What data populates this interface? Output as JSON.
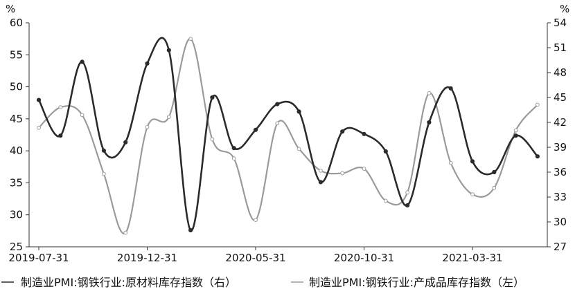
{
  "chart_data": {
    "type": "line",
    "x": [
      "2019-07-31",
      "2019-08-31",
      "2019-09-30",
      "2019-10-31",
      "2019-11-30",
      "2019-12-31",
      "2020-01-31",
      "2020-02-29",
      "2020-03-31",
      "2020-04-30",
      "2020-05-31",
      "2020-06-30",
      "2020-07-31",
      "2020-08-31",
      "2020-09-30",
      "2020-10-31",
      "2020-11-30",
      "2020-12-31",
      "2021-01-31",
      "2021-02-28",
      "2021-03-31",
      "2021-04-30",
      "2021-05-31",
      "2021-06-30"
    ],
    "xticks": [
      "2019-07-31",
      "2019-12-31",
      "2020-05-31",
      "2020-10-31",
      "2021-03-31"
    ],
    "series": [
      {
        "name": "制造业PMI:钢铁行业:原材料库存指数（右）",
        "axis": "right",
        "color": "#2b2b2b",
        "marker": "filled",
        "values": [
          44.7,
          40.4,
          49.3,
          38.6,
          39.6,
          49.1,
          50.7,
          29.0,
          45.0,
          38.9,
          41.1,
          44.2,
          43.3,
          34.8,
          40.9,
          40.6,
          38.5,
          32.0,
          42.0,
          46.1,
          37.3,
          36.0,
          40.4,
          37.9
        ]
      },
      {
        "name": "制造业PMI:钢铁行业:产成品库存指数（左）",
        "axis": "left",
        "color": "#9a9a9a",
        "marker": "hollow",
        "values": [
          43.6,
          46.8,
          45.6,
          36.4,
          27.2,
          43.7,
          45.3,
          57.5,
          41.8,
          38.8,
          29.2,
          44.3,
          40.3,
          36.9,
          36.5,
          37.2,
          32.2,
          33.5,
          49.0,
          38.1,
          33.2,
          34.2,
          43.2,
          47.2
        ]
      }
    ],
    "y_left": {
      "label": "%",
      "ylim": [
        25,
        60
      ],
      "ticks": [
        "25",
        "30",
        "35",
        "40",
        "45",
        "50",
        "55",
        "60"
      ]
    },
    "y_right": {
      "label": "%",
      "ylim": [
        27,
        54
      ],
      "ticks": [
        "27",
        "30",
        "33",
        "36",
        "39",
        "42",
        "45",
        "48",
        "51",
        "54"
      ]
    },
    "legend": {
      "position": "bottom"
    }
  }
}
